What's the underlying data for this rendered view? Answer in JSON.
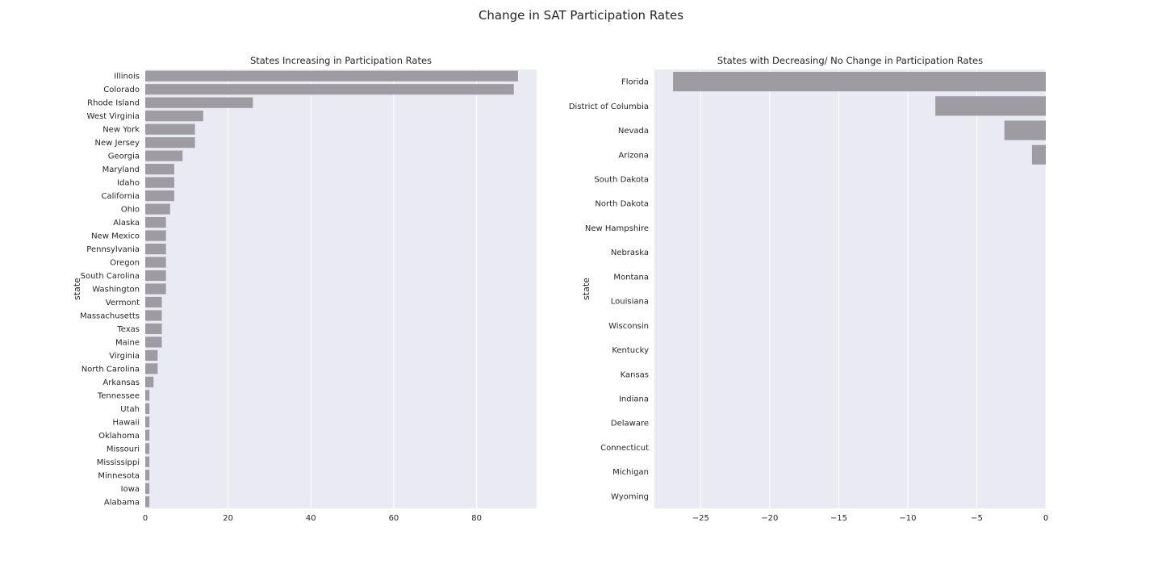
{
  "figure": {
    "title": "Change in SAT Participation Rates"
  },
  "chart_data": [
    {
      "type": "bar",
      "orientation": "horizontal",
      "title": "States Increasing in Participation Rates",
      "xlabel": "",
      "ylabel": "state",
      "xlim": [
        0,
        94.5
      ],
      "xticks": [
        0,
        20,
        40,
        60,
        80
      ],
      "grid": true,
      "bar_color": "#9e9ca2",
      "background": "#eaeaf2",
      "categories": [
        "Illinois",
        "Colorado",
        "Rhode Island",
        "West Virginia",
        "New York",
        "New Jersey",
        "Georgia",
        "Maryland",
        "Idaho",
        "California",
        "Ohio",
        "Alaska",
        "New Mexico",
        "Pennsylvania",
        "Oregon",
        "South Carolina",
        "Washington",
        "Vermont",
        "Massachusetts",
        "Texas",
        "Maine",
        "Virginia",
        "North Carolina",
        "Arkansas",
        "Tennessee",
        "Utah",
        "Hawaii",
        "Oklahoma",
        "Missouri",
        "Mississippi",
        "Minnesota",
        "Iowa",
        "Alabama"
      ],
      "values": [
        90,
        89,
        26,
        14,
        12,
        12,
        9,
        7,
        7,
        7,
        6,
        5,
        5,
        5,
        5,
        5,
        5,
        4,
        4,
        4,
        4,
        3,
        3,
        2,
        1,
        1,
        1,
        1,
        1,
        1,
        1,
        1,
        1
      ]
    },
    {
      "type": "bar",
      "orientation": "horizontal",
      "title": "States with Decreasing/ No Change in Participation Rates",
      "xlabel": "",
      "ylabel": "state",
      "xlim": [
        -28.35,
        0
      ],
      "xticks": [
        -25,
        -20,
        -15,
        -10,
        -5,
        0
      ],
      "grid": true,
      "bar_color": "#9e9ca2",
      "background": "#eaeaf2",
      "categories": [
        "Florida",
        "District of Columbia",
        "Nevada",
        "Arizona",
        "South Dakota",
        "North Dakota",
        "New Hampshire",
        "Nebraska",
        "Montana",
        "Louisiana",
        "Wisconsin",
        "Kentucky",
        "Kansas",
        "Indiana",
        "Delaware",
        "Connecticut",
        "Michigan",
        "Wyoming"
      ],
      "values": [
        -27,
        -8,
        -3,
        -1,
        0,
        0,
        0,
        0,
        0,
        0,
        0,
        0,
        0,
        0,
        0,
        0,
        0,
        0
      ]
    }
  ]
}
